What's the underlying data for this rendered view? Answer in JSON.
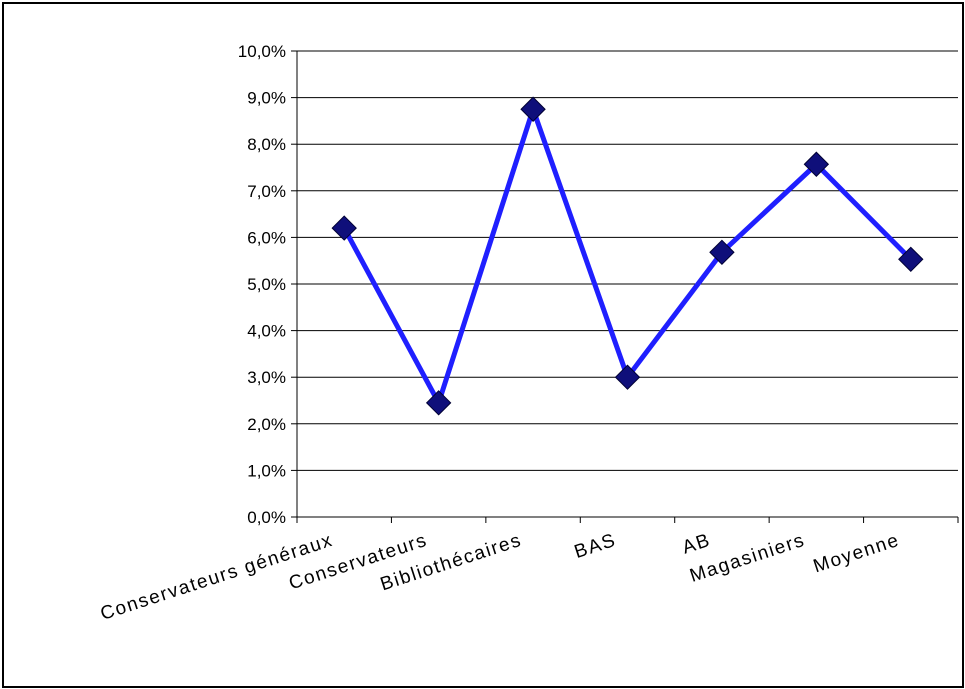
{
  "chart_data": {
    "type": "line",
    "title": "",
    "xlabel": "",
    "ylabel": "",
    "categories": [
      "Conservateurs généraux",
      "Conservateurs",
      "Bibliothécaires",
      "BAS",
      "AB",
      "Magasiniers",
      "Moyenne"
    ],
    "values": [
      6.2,
      2.45,
      8.75,
      3.0,
      5.68,
      7.57,
      5.53
    ],
    "ylim": [
      0,
      10
    ],
    "y_step": 1,
    "y_tick_labels": [
      "0,0%",
      "1,0%",
      "2,0%",
      "3,0%",
      "4,0%",
      "5,0%",
      "6,0%",
      "7,0%",
      "8,0%",
      "9,0%",
      "10,0%"
    ],
    "grid": true,
    "legend": "none",
    "line_color": "#1f1fff",
    "marker": "diamond",
    "marker_color": "#0f0f7a"
  }
}
